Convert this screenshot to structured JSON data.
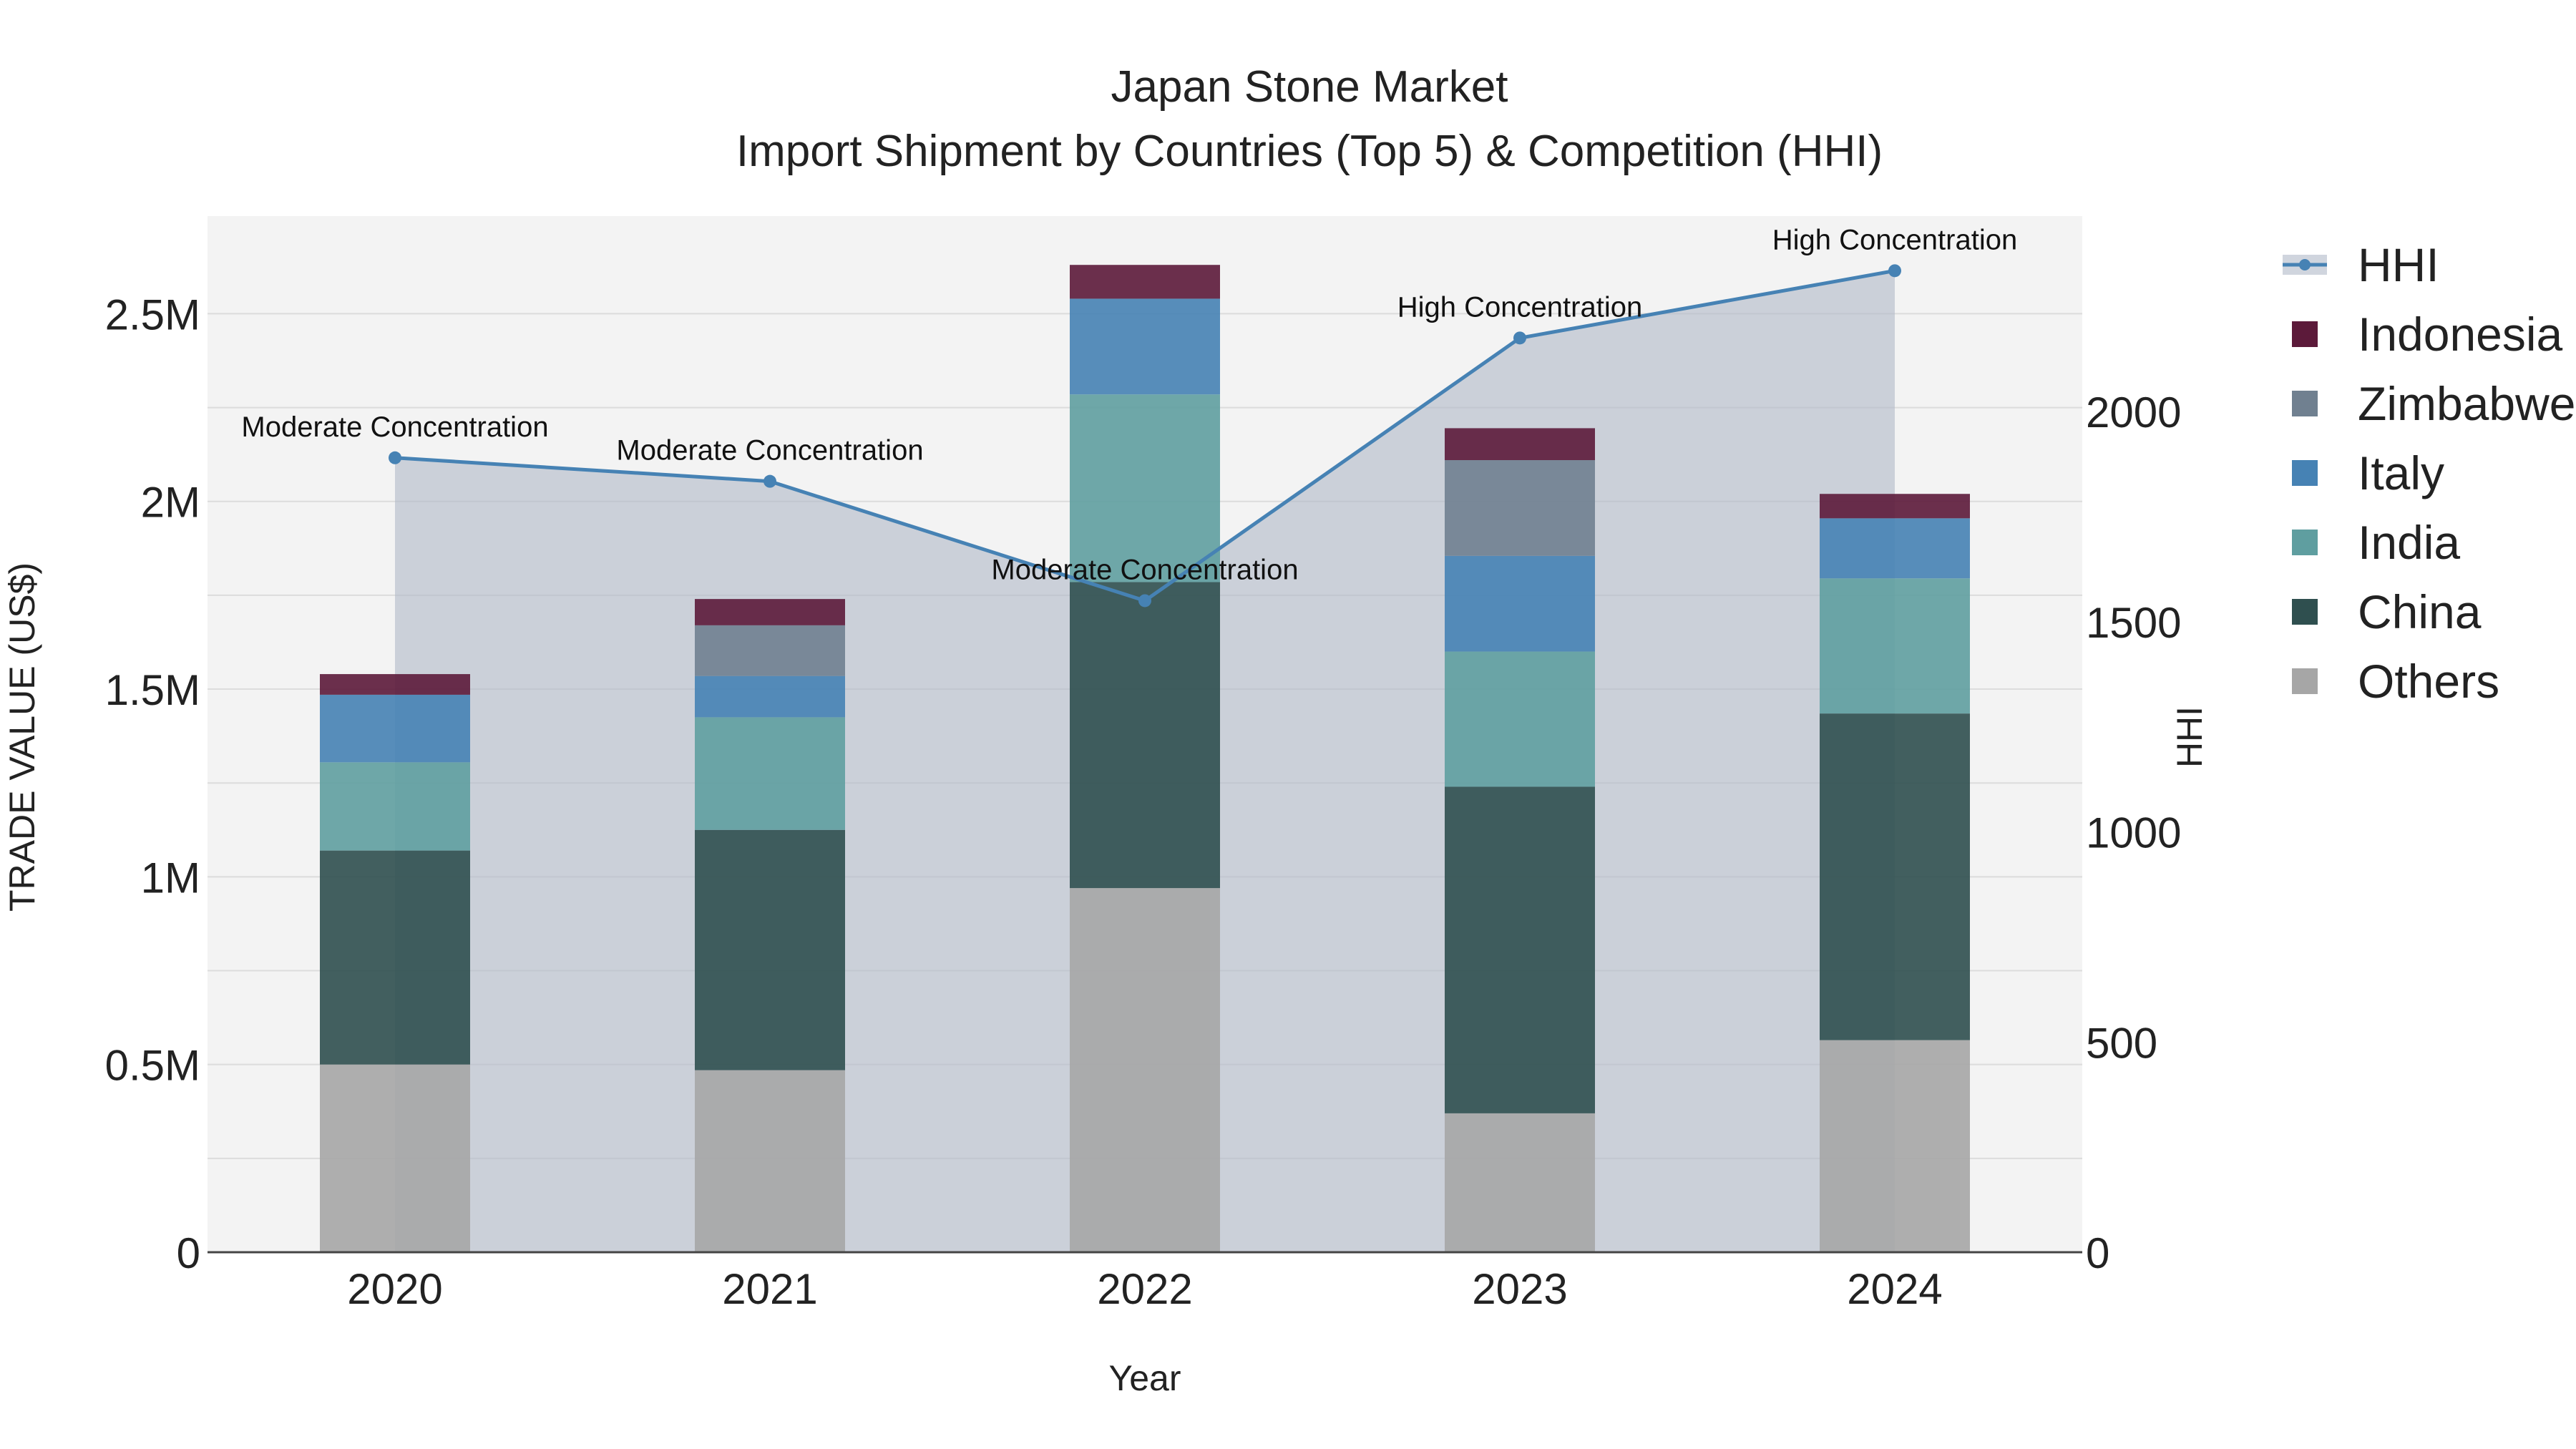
{
  "chart_data": {
    "type": "bar",
    "title": "Japan Stone Market",
    "subtitle": "Import Shipment by Countries (Top 5) & Competition (HHI)",
    "xlabel": "Year",
    "ylabel": "TRADE VALUE (US$)",
    "y2label": "HHI",
    "categories": [
      "2020",
      "2021",
      "2022",
      "2023",
      "2024"
    ],
    "ylim": [
      0,
      2760000
    ],
    "y2lim": [
      0,
      2465
    ],
    "yticks": [
      0,
      500000,
      1000000,
      1500000,
      2000000,
      2500000
    ],
    "ytick_labels": [
      "0",
      "0.5M",
      "1M",
      "1.5M",
      "2M",
      "2.5M"
    ],
    "y2ticks": [
      0,
      500,
      1000,
      1500,
      2000
    ],
    "y2tick_labels": [
      "0",
      "500",
      "1000",
      "1500",
      "2000"
    ],
    "stack_order": [
      "Others",
      "China",
      "India",
      "Italy",
      "Zimbabwe",
      "Indonesia"
    ],
    "series": [
      {
        "name": "Others",
        "color": "#a6a6a6",
        "values": [
          500000,
          485000,
          970000,
          370000,
          565000
        ]
      },
      {
        "name": "China",
        "color": "#2f4f4f",
        "values": [
          570000,
          640000,
          815000,
          870000,
          870000
        ]
      },
      {
        "name": "India",
        "color": "#5f9ea0",
        "values": [
          235000,
          300000,
          500000,
          360000,
          360000
        ]
      },
      {
        "name": "Italy",
        "color": "#4682b4",
        "values": [
          180000,
          110000,
          255000,
          255000,
          160000
        ]
      },
      {
        "name": "Zimbabwe",
        "color": "#708090",
        "values": [
          0,
          135000,
          0,
          255000,
          0
        ]
      },
      {
        "name": "Indonesia",
        "color": "#5c1a3a",
        "values": [
          55000,
          70000,
          90000,
          85000,
          65000
        ]
      }
    ],
    "hhi": {
      "name": "HHI",
      "color": "#4682b4",
      "values": [
        1890,
        1834,
        1550,
        2175,
        2335
      ],
      "labels": [
        "Moderate Concentration",
        "Moderate Concentration",
        "Moderate Concentration",
        "High Concentration",
        "High Concentration"
      ]
    },
    "legend": [
      "HHI",
      "Indonesia",
      "Zimbabwe",
      "Italy",
      "India",
      "China",
      "Others"
    ],
    "legend_position": "right",
    "grid": true
  }
}
